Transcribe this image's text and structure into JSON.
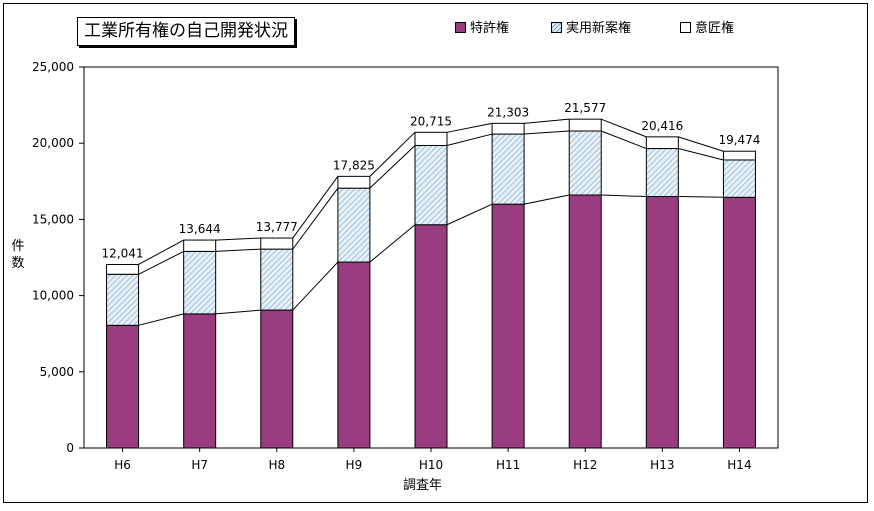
{
  "title": "工業所有権の自己開発状況",
  "legend": [
    {
      "label": "特許権",
      "color": "#993c80",
      "pattern": false
    },
    {
      "label": "実用新案権",
      "color": "#d7e6f2",
      "pattern": true
    },
    {
      "label": "意匠権",
      "color": "#ffffff",
      "pattern": false
    }
  ],
  "chart_data": {
    "type": "bar",
    "stacked": true,
    "title": "工業所有権の自己開発状況",
    "xlabel": "調査年",
    "ylabel": "件数",
    "ylim": [
      0,
      25000
    ],
    "yticks": [
      "0",
      "5,000",
      "10,000",
      "15,000",
      "20,000",
      "25,000"
    ],
    "categories": [
      "H6",
      "H7",
      "H8",
      "H9",
      "H10",
      "H11",
      "H12",
      "H13",
      "H14"
    ],
    "series": [
      {
        "name": "特許権",
        "values": [
          8050,
          8800,
          9050,
          12200,
          14650,
          16000,
          16600,
          16500,
          16450
        ]
      },
      {
        "name": "実用新案権",
        "values": [
          3350,
          4100,
          4000,
          4850,
          5200,
          4600,
          4200,
          3150,
          2450
        ]
      },
      {
        "name": "意匠権",
        "values": [
          641,
          744,
          727,
          775,
          865,
          703,
          777,
          766,
          574
        ]
      }
    ],
    "totals": [
      "12,041",
      "13,644",
      "13,777",
      "17,825",
      "20,715",
      "21,303",
      "21,577",
      "20,416",
      "19,474"
    ],
    "legend_position": "top-right",
    "grid": false
  }
}
